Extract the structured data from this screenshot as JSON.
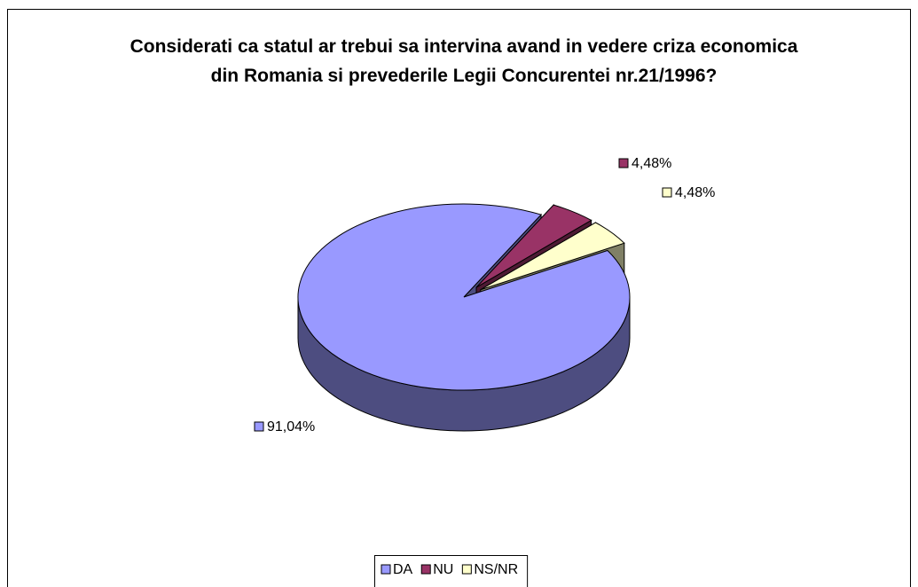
{
  "chart_data": {
    "type": "pie",
    "title": "Considerati ca statul ar trebui sa intervina avand in vedere criza economica din Romania si prevederile Legii Concurentei nr.21/1996?",
    "categories": [
      "DA",
      "NU",
      "NS/NR"
    ],
    "values": [
      91.04,
      4.48,
      4.48
    ],
    "value_labels": [
      "91,04%",
      "4,48%",
      "4,48%"
    ],
    "colors": [
      "#9999ff",
      "#993366",
      "#ffffcc"
    ],
    "legend": "bottom"
  }
}
